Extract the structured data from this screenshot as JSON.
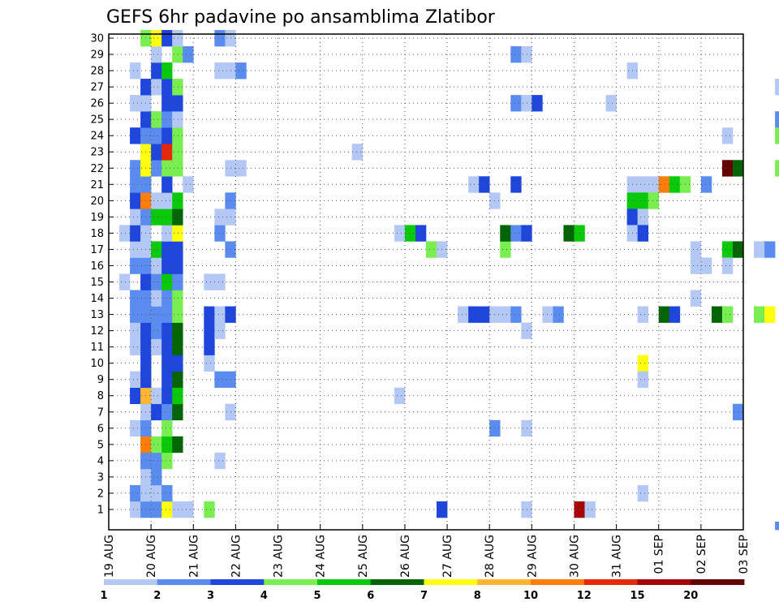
{
  "chart_data": {
    "type": "heatmap",
    "title": "GEFS 6hr padavine po ansamblima Zlatibor",
    "xlabel": "",
    "ylabel": "",
    "x_ticks": [
      "19 AUG",
      "20 AUG",
      "21 AUG",
      "22 AUG",
      "23 AUG",
      "24 AUG",
      "25 AUG",
      "26 AUG",
      "27 AUG",
      "28 AUG",
      "29 AUG",
      "30 AUG",
      "31 AUG",
      "01 SEP",
      "02 SEP",
      "03 SEP"
    ],
    "y_ticks": [
      "1",
      "2",
      "3",
      "4",
      "5",
      "6",
      "7",
      "8",
      "9",
      "10",
      "11",
      "12",
      "13",
      "14",
      "15",
      "16",
      "17",
      "18",
      "19",
      "20",
      "21",
      "22",
      "23",
      "24",
      "25",
      "26",
      "27",
      "28",
      "29",
      "30"
    ],
    "grid": true,
    "legend_placement": "bottom",
    "legend": {
      "labels": [
        "1",
        "2",
        "3",
        "4",
        "5",
        "6",
        "7",
        "8",
        "10",
        "12",
        "15",
        "20"
      ],
      "colors": [
        "#b4c8f5",
        "#5a8cf0",
        "#1e46dc",
        "#78ee50",
        "#0ac80a",
        "#056405",
        "#ffff0f",
        "#ffb432",
        "#ff7d0a",
        "#e6280a",
        "#a50505",
        "#640000"
      ]
    },
    "columns_per_day": 4,
    "cells": [
      [
        0.5,
        1,
        0
      ],
      [
        0.75,
        1,
        1
      ],
      [
        1,
        1,
        1
      ],
      [
        1.25,
        1,
        6
      ],
      [
        1.5,
        1,
        0
      ],
      [
        0.5,
        2,
        1
      ],
      [
        0.75,
        2,
        0
      ],
      [
        1,
        2,
        0
      ],
      [
        1.25,
        2,
        1
      ],
      [
        0.75,
        3,
        0
      ],
      [
        1,
        3,
        1
      ],
      [
        0.75,
        4,
        1
      ],
      [
        1,
        4,
        1
      ],
      [
        1.25,
        4,
        3
      ],
      [
        0.75,
        5,
        8
      ],
      [
        1,
        5,
        3
      ],
      [
        1.25,
        5,
        4
      ],
      [
        1.5,
        5,
        5
      ],
      [
        0.5,
        6,
        0
      ],
      [
        0.75,
        6,
        1
      ],
      [
        1.25,
        6,
        3
      ],
      [
        0.75,
        7,
        0
      ],
      [
        1,
        7,
        2
      ],
      [
        1.25,
        7,
        1
      ],
      [
        1.5,
        7,
        5
      ],
      [
        0.5,
        8,
        2
      ],
      [
        0.75,
        8,
        7
      ],
      [
        1,
        8,
        0
      ],
      [
        1.25,
        8,
        2
      ],
      [
        1.5,
        8,
        4
      ],
      [
        0.5,
        9,
        0
      ],
      [
        0.75,
        9,
        2
      ],
      [
        1.25,
        9,
        2
      ],
      [
        1.5,
        9,
        5
      ],
      [
        0.75,
        10,
        2
      ],
      [
        1.25,
        10,
        2
      ],
      [
        1.5,
        10,
        2
      ],
      [
        0.5,
        11,
        0
      ],
      [
        0.75,
        11,
        2
      ],
      [
        1,
        11,
        0
      ],
      [
        1.25,
        11,
        2
      ],
      [
        1.5,
        11,
        5
      ],
      [
        0.5,
        12,
        0
      ],
      [
        0.75,
        12,
        2
      ],
      [
        1,
        12,
        1
      ],
      [
        1.25,
        12,
        2
      ],
      [
        1.5,
        12,
        5
      ],
      [
        0.5,
        13,
        1
      ],
      [
        0.75,
        13,
        1
      ],
      [
        1,
        13,
        1
      ],
      [
        1.25,
        13,
        1
      ],
      [
        1.5,
        13,
        3
      ],
      [
        0.5,
        14,
        1
      ],
      [
        0.75,
        14,
        1
      ],
      [
        1,
        14,
        0
      ],
      [
        1.25,
        14,
        1
      ],
      [
        1.5,
        14,
        3
      ],
      [
        0.25,
        15,
        0
      ],
      [
        0.75,
        15,
        2
      ],
      [
        1,
        15,
        1
      ],
      [
        1.25,
        15,
        4
      ],
      [
        1.5,
        15,
        1
      ],
      [
        0.5,
        16,
        1
      ],
      [
        0.75,
        16,
        1
      ],
      [
        1,
        16,
        0
      ],
      [
        1.25,
        16,
        2
      ],
      [
        1.5,
        16,
        2
      ],
      [
        0.5,
        17,
        0
      ],
      [
        0.75,
        17,
        0
      ],
      [
        1,
        17,
        4
      ],
      [
        1.25,
        17,
        2
      ],
      [
        1.5,
        17,
        2
      ],
      [
        0.25,
        18,
        0
      ],
      [
        0.5,
        18,
        2
      ],
      [
        0.75,
        18,
        0
      ],
      [
        1.25,
        18,
        0
      ],
      [
        1.5,
        18,
        6
      ],
      [
        0.5,
        19,
        0
      ],
      [
        0.75,
        19,
        1
      ],
      [
        1,
        19,
        4
      ],
      [
        1.25,
        19,
        4
      ],
      [
        1.5,
        19,
        5
      ],
      [
        0.5,
        20,
        2
      ],
      [
        0.75,
        20,
        8
      ],
      [
        1,
        20,
        0
      ],
      [
        1.25,
        20,
        0
      ],
      [
        1.5,
        20,
        4
      ],
      [
        0.5,
        21,
        1
      ],
      [
        0.75,
        21,
        1
      ],
      [
        1.25,
        21,
        2
      ],
      [
        0.5,
        22,
        1
      ],
      [
        0.75,
        22,
        6
      ],
      [
        1,
        22,
        1
      ],
      [
        1.25,
        22,
        3
      ],
      [
        1.5,
        22,
        3
      ],
      [
        0.75,
        23,
        6
      ],
      [
        1,
        23,
        2
      ],
      [
        1.25,
        23,
        9
      ],
      [
        1.5,
        23,
        3
      ],
      [
        0.5,
        24,
        2
      ],
      [
        0.75,
        24,
        1
      ],
      [
        1,
        24,
        1
      ],
      [
        1.25,
        24,
        2
      ],
      [
        1.5,
        24,
        3
      ],
      [
        0.75,
        25,
        2
      ],
      [
        1,
        25,
        3
      ],
      [
        1.25,
        25,
        1
      ],
      [
        1.5,
        25,
        0
      ],
      [
        0.5,
        26,
        0
      ],
      [
        0.75,
        26,
        0
      ],
      [
        1.25,
        26,
        2
      ],
      [
        1.5,
        26,
        2
      ],
      [
        0.75,
        27,
        2
      ],
      [
        1,
        27,
        0
      ],
      [
        1.25,
        27,
        2
      ],
      [
        1.5,
        27,
        3
      ],
      [
        0.5,
        28,
        0
      ],
      [
        1,
        28,
        2
      ],
      [
        1.25,
        28,
        4
      ],
      [
        1,
        29,
        0
      ],
      [
        1.5,
        29,
        3
      ],
      [
        0.75,
        30,
        3
      ],
      [
        1,
        30,
        6
      ],
      [
        1.25,
        30,
        2
      ],
      [
        1.5,
        30,
        0
      ],
      [
        1.75,
        1,
        0
      ],
      [
        2.25,
        1,
        3
      ],
      [
        2.5,
        4,
        0
      ],
      [
        2.75,
        7,
        0
      ],
      [
        2.5,
        9,
        1
      ],
      [
        2.75,
        9,
        1
      ],
      [
        2.25,
        10,
        0
      ],
      [
        2.25,
        11,
        2
      ],
      [
        2.25,
        12,
        2
      ],
      [
        2.5,
        12,
        0
      ],
      [
        2.25,
        13,
        2
      ],
      [
        2.5,
        13,
        0
      ],
      [
        2.75,
        13,
        2
      ],
      [
        2.25,
        15,
        0
      ],
      [
        2.5,
        15,
        0
      ],
      [
        2.75,
        17,
        1
      ],
      [
        2.5,
        18,
        1
      ],
      [
        2.5,
        19,
        0
      ],
      [
        2.75,
        19,
        0
      ],
      [
        2.75,
        20,
        1
      ],
      [
        1.75,
        21,
        0
      ],
      [
        2.75,
        22,
        0
      ],
      [
        3,
        22,
        0
      ],
      [
        2.5,
        28,
        0
      ],
      [
        2.75,
        28,
        0
      ],
      [
        3,
        28,
        1
      ],
      [
        1.75,
        29,
        1
      ],
      [
        2.5,
        30,
        1
      ],
      [
        2.75,
        30,
        0
      ],
      [
        5.75,
        23,
        0
      ],
      [
        6.75,
        8,
        0
      ],
      [
        6.75,
        18,
        0
      ],
      [
        7,
        18,
        4
      ],
      [
        7.25,
        18,
        2
      ],
      [
        7.5,
        17,
        3
      ],
      [
        7.75,
        17,
        0
      ],
      [
        7.75,
        1,
        2
      ],
      [
        8.25,
        13,
        0
      ],
      [
        8.5,
        13,
        2
      ],
      [
        8.75,
        13,
        2
      ],
      [
        9,
        13,
        0
      ],
      [
        9.25,
        13,
        0
      ],
      [
        9.5,
        13,
        1
      ],
      [
        8.5,
        21,
        0
      ],
      [
        8.75,
        21,
        2
      ],
      [
        9,
        20,
        0
      ],
      [
        9,
        6,
        1
      ],
      [
        9.25,
        17,
        3
      ],
      [
        9.25,
        18,
        5
      ],
      [
        9.5,
        18,
        1
      ],
      [
        9.75,
        18,
        2
      ],
      [
        9.5,
        21,
        2
      ],
      [
        9.5,
        29,
        1
      ],
      [
        9.75,
        29,
        0
      ],
      [
        9.5,
        26,
        1
      ],
      [
        9.75,
        26,
        0
      ],
      [
        10,
        26,
        2
      ],
      [
        9.75,
        12,
        0
      ],
      [
        9.75,
        6,
        0
      ],
      [
        9.75,
        1,
        0
      ],
      [
        10.25,
        13,
        0
      ],
      [
        10.5,
        13,
        1
      ],
      [
        10.75,
        18,
        5
      ],
      [
        11,
        18,
        4
      ],
      [
        11,
        1,
        10
      ],
      [
        11.25,
        1,
        0
      ],
      [
        11.75,
        26,
        0
      ],
      [
        12.25,
        28,
        0
      ],
      [
        12.25,
        21,
        0
      ],
      [
        12.5,
        21,
        0
      ],
      [
        12.75,
        21,
        0
      ],
      [
        12.25,
        20,
        4
      ],
      [
        12.5,
        20,
        4
      ],
      [
        12.75,
        20,
        3
      ],
      [
        12.25,
        19,
        2
      ],
      [
        12.5,
        19,
        0
      ],
      [
        12.25,
        18,
        0
      ],
      [
        12.5,
        18,
        2
      ],
      [
        12.5,
        13,
        0
      ],
      [
        12.5,
        10,
        6
      ],
      [
        12.5,
        9,
        0
      ],
      [
        12.5,
        2,
        0
      ],
      [
        13,
        21,
        8
      ],
      [
        13.25,
        21,
        4
      ],
      [
        13.5,
        21,
        3
      ],
      [
        13,
        13,
        5
      ],
      [
        13.25,
        13,
        2
      ],
      [
        13.75,
        17,
        0
      ],
      [
        13.75,
        16,
        0
      ],
      [
        14,
        16,
        0
      ],
      [
        13.75,
        14,
        0
      ],
      [
        14,
        21,
        1
      ],
      [
        14.25,
        13,
        5
      ],
      [
        14.5,
        13,
        3
      ],
      [
        14.5,
        17,
        4
      ],
      [
        14.75,
        17,
        5
      ],
      [
        14.5,
        16,
        0
      ],
      [
        14.5,
        24,
        0
      ],
      [
        14.5,
        22,
        11
      ],
      [
        14.75,
        22,
        5
      ],
      [
        14.75,
        7,
        1
      ],
      [
        15.25,
        17,
        0
      ],
      [
        15.5,
        17,
        1
      ],
      [
        15.25,
        13,
        3
      ],
      [
        15.5,
        13,
        6
      ],
      [
        15.75,
        25,
        1
      ],
      [
        15.75,
        24,
        3
      ],
      [
        15.75,
        22,
        3
      ],
      [
        15.75,
        27,
        0
      ],
      [
        15.75,
        0,
        1
      ]
    ]
  }
}
